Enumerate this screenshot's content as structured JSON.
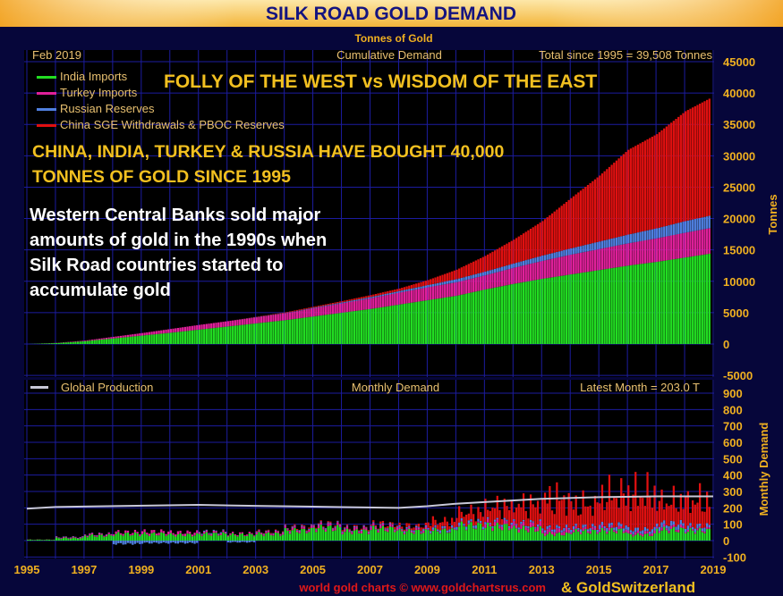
{
  "title": "SILK ROAD GOLD DEMAND",
  "subtitle": "Tonnes of Gold",
  "top_panel": {
    "date": "Feb 2019",
    "panel_title": "Cumulative Demand",
    "total": "Total since 1995 = 39,508 Tonnes",
    "ylabel": "Tonnes",
    "yticks": [
      "45000",
      "40000",
      "35000",
      "30000",
      "25000",
      "20000",
      "15000",
      "10000",
      "5000",
      "0",
      "-5000"
    ]
  },
  "annotations": {
    "headline": "FOLLY OF THE WEST vs WISDOM OF THE EAST",
    "line1": "CHINA, INDIA, TURKEY & RUSSIA HAVE BOUGHT 40,000",
    "line2": "TONNES OF GOLD SINCE 1995",
    "white1": "Western Central Banks sold major",
    "white2": "amounts of gold in the 1990s when",
    "white3": "Silk Road countries started to",
    "white4": "accumulate gold"
  },
  "bottom_panel": {
    "legend": "Global Production",
    "panel_title": "Monthly Demand",
    "latest": "Latest Month = 203.0 T",
    "ylabel": "Monthly Demand",
    "yticks": [
      "900",
      "800",
      "700",
      "600",
      "500",
      "400",
      "300",
      "200",
      "100",
      "0",
      "-100"
    ]
  },
  "xticks": [
    "1995",
    "1997",
    "1999",
    "2001",
    "2003",
    "2005",
    "2007",
    "2009",
    "2011",
    "2013",
    "2015",
    "2017",
    "2019"
  ],
  "footer": {
    "credit": "world gold charts © www.goldchartsrus.com",
    "partner": "& GoldSwitzerland"
  },
  "colors": {
    "India Imports": "#22dd22",
    "Turkey Imports": "#e0209a",
    "Russian Reserves": "#5080e0",
    "China SGE Withdrawals & PBOC Reserves": "#e01010",
    "Global Production": "#c8c8d8"
  },
  "chart_data": [
    {
      "type": "area",
      "title": "Cumulative Demand",
      "stacked": true,
      "ylabel": "Tonnes",
      "ylim": [
        -5000,
        45000
      ],
      "x": [
        1995,
        1996,
        1997,
        1998,
        1999,
        2000,
        2001,
        2002,
        2003,
        2004,
        2005,
        2006,
        2007,
        2008,
        2009,
        2010,
        2011,
        2012,
        2013,
        2014,
        2015,
        2016,
        2017,
        2018,
        2019
      ],
      "legend_placement": "top-left",
      "grid": true,
      "series": [
        {
          "name": "India Imports",
          "values": [
            0,
            150,
            450,
            900,
            1350,
            1800,
            2300,
            2800,
            3300,
            3800,
            4400,
            5000,
            5600,
            6300,
            7000,
            7700,
            8700,
            9600,
            10400,
            11100,
            11800,
            12500,
            13100,
            13800,
            14500
          ]
        },
        {
          "name": "Turkey Imports",
          "values": [
            0,
            30,
            100,
            250,
            400,
            600,
            750,
            850,
            950,
            1100,
            1300,
            1500,
            1700,
            1900,
            2050,
            2150,
            2250,
            2550,
            2850,
            3150,
            3350,
            3550,
            3750,
            3950,
            4100
          ]
        },
        {
          "name": "Russian Reserves",
          "values": [
            0,
            0,
            0,
            0,
            0,
            0,
            0,
            0,
            50,
            50,
            100,
            150,
            200,
            250,
            350,
            500,
            600,
            700,
            850,
            1000,
            1200,
            1400,
            1600,
            1850,
            2000
          ]
        },
        {
          "name": "China SGE Withdrawals & PBOC Reserves",
          "values": [
            0,
            0,
            0,
            0,
            0,
            0,
            0,
            0,
            50,
            100,
            150,
            200,
            300,
            400,
            800,
            1500,
            2500,
            3800,
            5500,
            8000,
            10500,
            13500,
            15000,
            17500,
            18900
          ]
        }
      ]
    },
    {
      "type": "bar",
      "title": "Monthly Demand",
      "stacked": true,
      "ylabel": "Monthly Demand",
      "ylim": [
        -100,
        900
      ],
      "x": [
        1995,
        1996,
        1997,
        1998,
        1999,
        2000,
        2001,
        2002,
        2003,
        2004,
        2005,
        2006,
        2007,
        2008,
        2009,
        2010,
        2011,
        2012,
        2013,
        2014,
        2015,
        2016,
        2017,
        2018
      ],
      "series": [
        {
          "name": "India Imports",
          "values": [
            5,
            15,
            30,
            40,
            40,
            35,
            40,
            35,
            40,
            60,
            75,
            55,
            70,
            55,
            60,
            90,
            85,
            70,
            40,
            55,
            60,
            35,
            65,
            60
          ]
        },
        {
          "name": "Turkey Imports",
          "values": [
            1,
            5,
            8,
            12,
            15,
            15,
            10,
            8,
            10,
            12,
            15,
            15,
            15,
            12,
            5,
            5,
            20,
            25,
            25,
            15,
            15,
            15,
            15,
            10
          ]
        },
        {
          "name": "Russian Reserves",
          "values": [
            0,
            2,
            2,
            -20,
            -15,
            -15,
            5,
            -10,
            3,
            5,
            5,
            5,
            5,
            8,
            12,
            15,
            10,
            10,
            15,
            15,
            20,
            20,
            25,
            20
          ]
        },
        {
          "name": "China SGE Withdrawals & PBOC Reserves",
          "values": [
            0,
            0,
            0,
            0,
            0,
            0,
            0,
            0,
            3,
            5,
            5,
            5,
            10,
            15,
            40,
            60,
            90,
            110,
            170,
            130,
            180,
            210,
            130,
            150
          ]
        }
      ],
      "line": {
        "name": "Global Production",
        "x": [
          1995,
          1996,
          1997,
          2001,
          2003,
          2005,
          2008,
          2009,
          2010,
          2011,
          2013,
          2015,
          2017,
          2019
        ],
        "values": [
          195,
          205,
          208,
          218,
          212,
          207,
          200,
          210,
          225,
          235,
          255,
          265,
          270,
          270
        ]
      },
      "grid": true
    }
  ]
}
